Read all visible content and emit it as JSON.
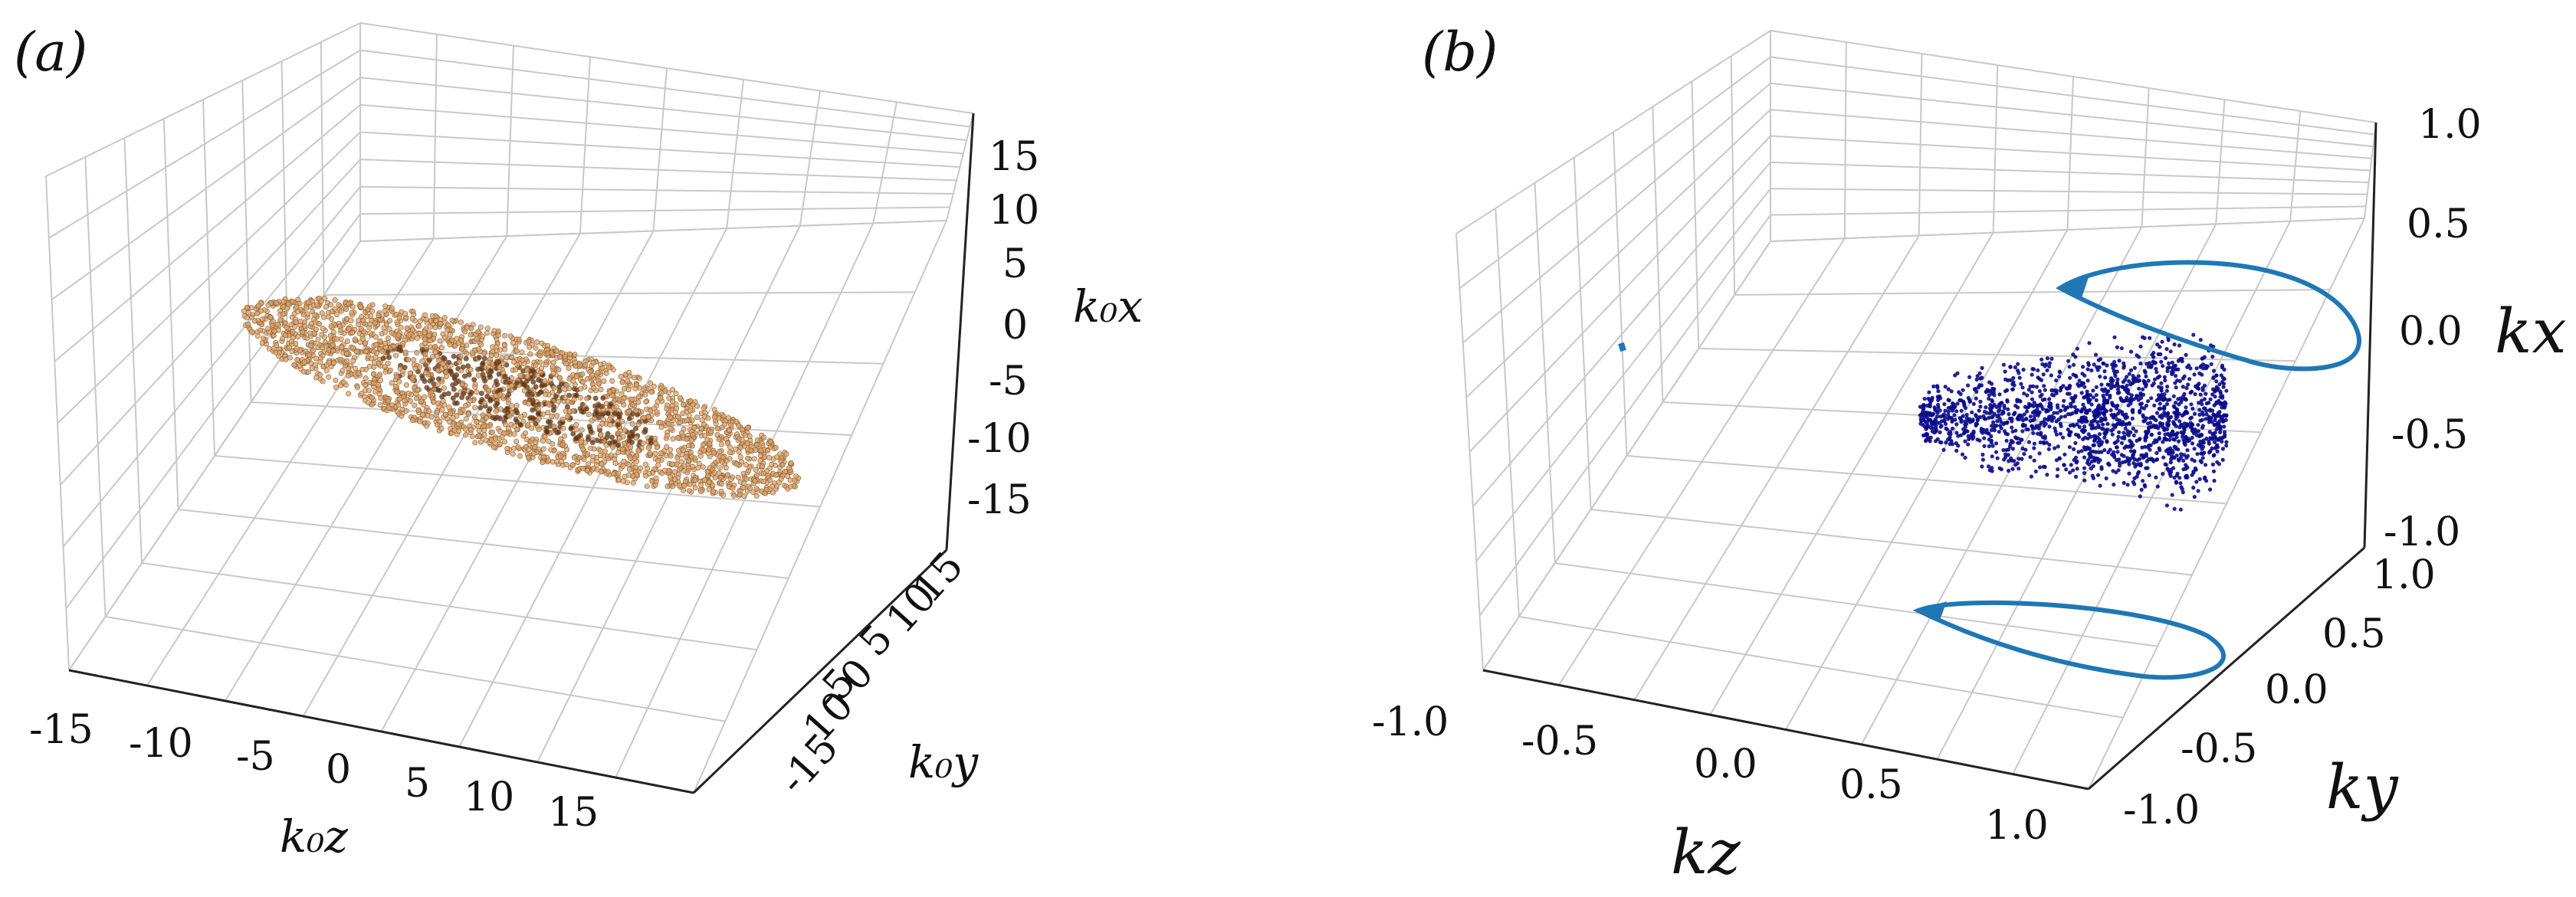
{
  "chart_data": [
    {
      "type": "scatter",
      "panel_label": "(a)",
      "xlabel": "k₀z",
      "ylabel": "k₀y",
      "zlabel": "k₀x",
      "x_ticks": [
        "-15",
        "-10",
        "-5",
        "0",
        "5",
        "10",
        "15"
      ],
      "y_ticks": [
        "-15",
        "-10",
        "-5",
        "0",
        "5",
        "10",
        "15"
      ],
      "z_ticks": [
        "15",
        "10",
        "5",
        "0",
        "-5",
        "-10",
        "-15"
      ],
      "xlim": [
        -15,
        15
      ],
      "ylim": [
        -15,
        15
      ],
      "zlim": [
        -15,
        15
      ],
      "grid": true,
      "colors": {
        "points": "#d9a36c",
        "core": "#5a3318"
      }
    },
    {
      "type": "scatter",
      "panel_label": "(b)",
      "xlabel": "kz",
      "ylabel": "ky",
      "zlabel": "kx",
      "x_ticks": [
        "-1.0",
        "-0.5",
        "0.0",
        "0.5",
        "1.0"
      ],
      "y_ticks": [
        "1.0",
        "0.5",
        "0.0",
        "-0.5",
        "-1.0"
      ],
      "z_ticks": [
        "1.0",
        "0.5",
        "0.0",
        "-0.5",
        "-1.0"
      ],
      "xlim": [
        -1,
        1
      ],
      "ylim": [
        -1,
        1
      ],
      "zlim": [
        -1,
        1
      ],
      "grid": true,
      "colors": {
        "points": "#0a0a8a",
        "projection": "#1f77b4"
      }
    }
  ]
}
